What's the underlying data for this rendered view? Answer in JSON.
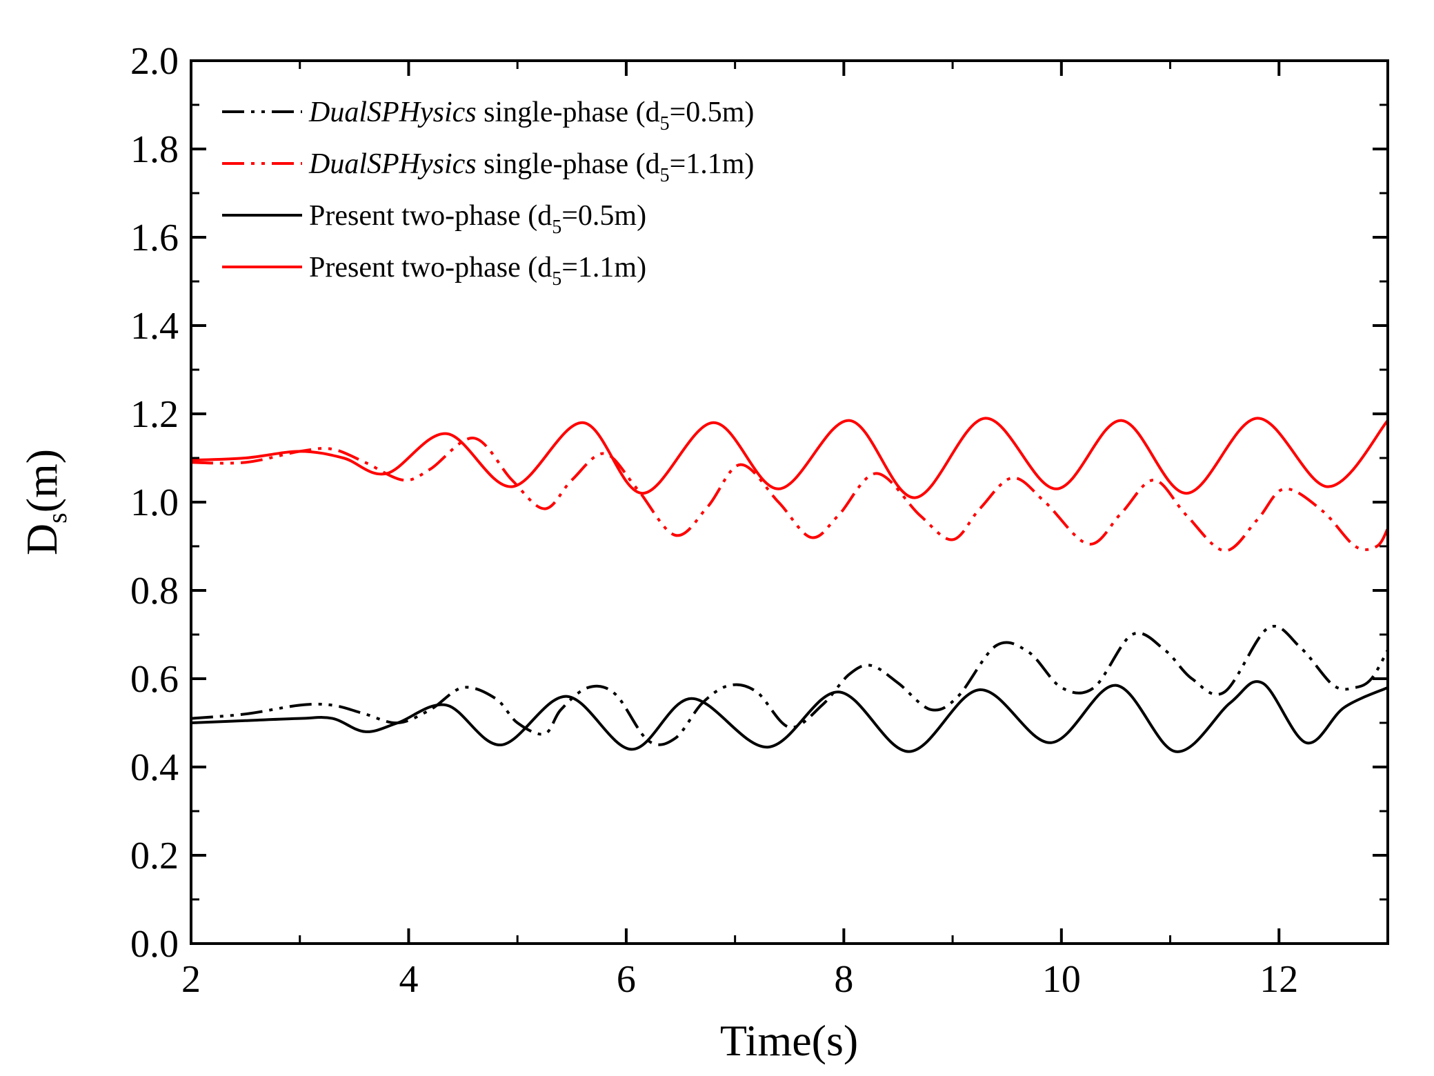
{
  "chart_data": {
    "type": "line",
    "title": "",
    "xlabel": "Time(s)",
    "ylabel": "D",
    "ylabel_subscript": "s",
    "ylabel_suffix": "(m)",
    "xlim": [
      2,
      13
    ],
    "ylim": [
      0.0,
      2.0
    ],
    "x_ticks": [
      "2",
      "4",
      "6",
      "8",
      "10",
      "12"
    ],
    "y_ticks": [
      "0.0",
      "0.2",
      "0.4",
      "0.6",
      "0.8",
      "1.0",
      "1.2",
      "1.4",
      "1.6",
      "1.8",
      "2.0"
    ],
    "grid": false,
    "legend_position": "top-left",
    "series": [
      {
        "name": "DualSPHysics single-phase (d5=0.5m)",
        "legend_italic": "DualSPHysics",
        "legend_rest_pre": " single-phase (d",
        "legend_sub": "5",
        "legend_rest_post": "=0.5m)",
        "color": "#000000",
        "style": "dash-dot-dot",
        "x": [
          2.0,
          2.5,
          3.0,
          3.3,
          3.6,
          3.9,
          4.2,
          4.5,
          4.8,
          5.0,
          5.25,
          5.4,
          5.65,
          5.9,
          6.2,
          6.45,
          6.7,
          6.95,
          7.2,
          7.5,
          7.8,
          8.05,
          8.25,
          8.5,
          8.8,
          9.05,
          9.4,
          9.7,
          10.0,
          10.3,
          10.65,
          10.95,
          11.2,
          11.5,
          11.9,
          12.2,
          12.5,
          12.7,
          12.85,
          13.0
        ],
        "y": [
          0.51,
          0.52,
          0.54,
          0.54,
          0.52,
          0.5,
          0.53,
          0.58,
          0.555,
          0.5,
          0.475,
          0.53,
          0.58,
          0.565,
          0.46,
          0.465,
          0.545,
          0.585,
          0.57,
          0.49,
          0.54,
          0.61,
          0.63,
          0.59,
          0.53,
          0.56,
          0.675,
          0.66,
          0.58,
          0.58,
          0.7,
          0.665,
          0.6,
          0.57,
          0.715,
          0.67,
          0.585,
          0.58,
          0.6,
          0.665
        ]
      },
      {
        "name": "DualSPHysics single-phase (d5=1.1m)",
        "legend_italic": "DualSPHysics",
        "legend_rest_pre": " single-phase (d",
        "legend_sub": "5",
        "legend_rest_post": "=1.1m)",
        "color": "#ff0000",
        "style": "dash-dot-dot",
        "x": [
          2.0,
          2.5,
          3.0,
          3.3,
          3.6,
          3.95,
          4.2,
          4.6,
          4.95,
          5.25,
          5.5,
          5.8,
          6.1,
          6.45,
          6.75,
          7.05,
          7.4,
          7.7,
          7.95,
          8.3,
          8.7,
          9.0,
          9.25,
          9.55,
          9.85,
          10.25,
          10.55,
          10.85,
          11.15,
          11.5,
          11.8,
          12.05,
          12.4,
          12.7,
          12.9,
          13.0
        ],
        "y": [
          1.09,
          1.09,
          1.115,
          1.12,
          1.09,
          1.05,
          1.075,
          1.145,
          1.05,
          0.985,
          1.05,
          1.11,
          1.03,
          0.925,
          0.99,
          1.085,
          1.0,
          0.92,
          0.97,
          1.065,
          0.97,
          0.915,
          0.985,
          1.055,
          1.0,
          0.905,
          0.975,
          1.05,
          0.97,
          0.89,
          0.96,
          1.03,
          0.98,
          0.9,
          0.9,
          0.94
        ]
      },
      {
        "name": "Present two-phase (d5=0.5m)",
        "legend_italic": "",
        "legend_rest_pre": "Present two-phase (d",
        "legend_sub": "5",
        "legend_rest_post": "=0.5m)",
        "color": "#000000",
        "style": "solid",
        "x": [
          2.0,
          2.5,
          3.0,
          3.3,
          3.6,
          3.9,
          4.35,
          4.85,
          5.45,
          6.05,
          6.6,
          7.3,
          7.95,
          8.6,
          9.25,
          9.9,
          10.5,
          11.05,
          11.55,
          11.85,
          12.25,
          12.6,
          13.0
        ],
        "y": [
          0.5,
          0.505,
          0.51,
          0.51,
          0.48,
          0.5,
          0.54,
          0.45,
          0.56,
          0.44,
          0.555,
          0.445,
          0.57,
          0.435,
          0.575,
          0.455,
          0.585,
          0.435,
          0.545,
          0.59,
          0.455,
          0.535,
          0.58
        ]
      },
      {
        "name": "Present two-phase (d5=1.1m)",
        "legend_italic": "",
        "legend_rest_pre": "Present two-phase (d",
        "legend_sub": "5",
        "legend_rest_post": "=1.1m)",
        "color": "#ff0000",
        "style": "solid",
        "x": [
          2.0,
          2.5,
          3.0,
          3.4,
          3.8,
          4.35,
          4.95,
          5.6,
          6.15,
          6.8,
          7.4,
          8.05,
          8.65,
          9.3,
          9.95,
          10.55,
          11.15,
          11.8,
          12.45,
          13.0
        ],
        "y": [
          1.095,
          1.1,
          1.115,
          1.1,
          1.065,
          1.155,
          1.035,
          1.18,
          1.02,
          1.18,
          1.03,
          1.185,
          1.01,
          1.19,
          1.03,
          1.185,
          1.02,
          1.19,
          1.035,
          1.185
        ]
      }
    ]
  }
}
